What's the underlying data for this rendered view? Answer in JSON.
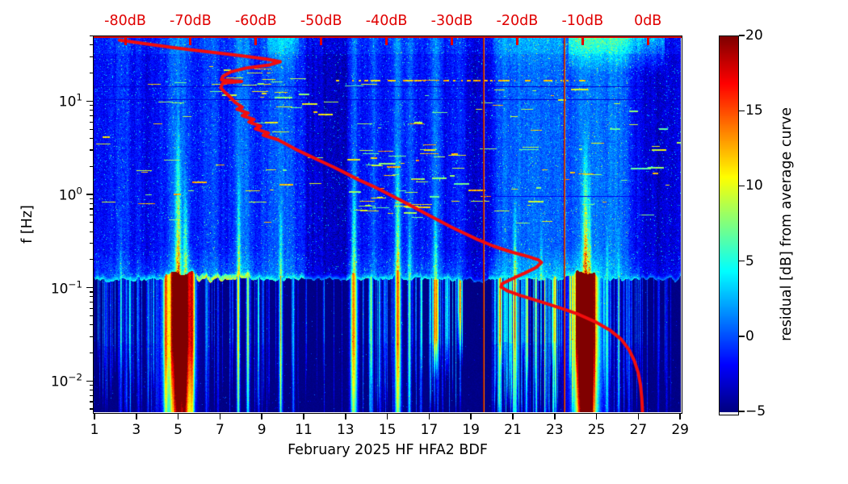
{
  "chart_data": {
    "type": "heatmap",
    "description": "Spectrogram of residual power [dB] relative to average curve, frequency vs day, with overlaid average amplitude spectrum curve read against the red top dB axis",
    "xlabel": "February 2025 HF HFA2  BDF",
    "ylabel": "f [Hz]",
    "x_ticks": [
      1,
      3,
      5,
      7,
      9,
      11,
      13,
      15,
      17,
      19,
      21,
      23,
      25,
      27,
      29
    ],
    "x_range_days": [
      1,
      29
    ],
    "y_tick_exponents": [
      1,
      0,
      -1,
      -2
    ],
    "y_range_hz": [
      0.0047,
      51
    ],
    "grid": false,
    "top_axis": {
      "color": "#e00000",
      "ticks_db": [
        -80,
        -70,
        -60,
        -50,
        -40,
        -30,
        -20,
        -10,
        0
      ],
      "labels": [
        "-80dB",
        "-70dB",
        "-60dB",
        "-50dB",
        "-40dB",
        "-30dB",
        "-20dB",
        "-10dB",
        "0dB"
      ]
    },
    "colorbar": {
      "label": "residual [dB] from average curve",
      "min": -5,
      "max": 20,
      "ticks": [
        20,
        15,
        10,
        5,
        0,
        -5
      ],
      "colormap": "jet"
    },
    "curve_color": "#f20d0d",
    "average_curve_db_hz": [
      [
        -81,
        46
      ],
      [
        -77,
        42
      ],
      [
        -73,
        38.5
      ],
      [
        -69,
        35.5
      ],
      [
        -65,
        33
      ],
      [
        -61.5,
        30.8
      ],
      [
        -58.5,
        28.8
      ],
      [
        -56.4,
        27
      ],
      [
        -58,
        25
      ],
      [
        -61.5,
        23.2
      ],
      [
        -64,
        21
      ],
      [
        -65.2,
        18.8
      ],
      [
        -65.4,
        17.3
      ],
      [
        -62.3,
        16.6
      ],
      [
        -65.2,
        15.9
      ],
      [
        -65.5,
        14.2
      ],
      [
        -64.8,
        12.6
      ],
      [
        -64,
        11.2
      ],
      [
        -63.3,
        9.9
      ],
      [
        -62.2,
        8.8
      ],
      [
        -63,
        8.35
      ],
      [
        -61.3,
        7.6
      ],
      [
        -62.2,
        7.15
      ],
      [
        -60.4,
        6.5
      ],
      [
        -61.2,
        6.1
      ],
      [
        -59.4,
        5.5
      ],
      [
        -60.2,
        5.15
      ],
      [
        -58.2,
        4.65
      ],
      [
        -59,
        4.4
      ],
      [
        -56.8,
        3.95
      ],
      [
        -55.4,
        3.5
      ],
      [
        -53.8,
        3.05
      ],
      [
        -52.2,
        2.7
      ],
      [
        -50.2,
        2.32
      ],
      [
        -48.2,
        2.0
      ],
      [
        -46.2,
        1.7
      ],
      [
        -44.2,
        1.44
      ],
      [
        -42.2,
        1.25
      ],
      [
        -40.2,
        1.06
      ],
      [
        -38.2,
        0.9
      ],
      [
        -36.2,
        0.76
      ],
      [
        -34.2,
        0.64
      ],
      [
        -32.2,
        0.54
      ],
      [
        -30.2,
        0.455
      ],
      [
        -28.2,
        0.39
      ],
      [
        -26.2,
        0.335
      ],
      [
        -23.8,
        0.285
      ],
      [
        -21.2,
        0.248
      ],
      [
        -18.6,
        0.222
      ],
      [
        -16.9,
        0.203
      ],
      [
        -16.4,
        0.19
      ],
      [
        -17.2,
        0.168
      ],
      [
        -18.8,
        0.148
      ],
      [
        -20.8,
        0.128
      ],
      [
        -22.4,
        0.113
      ],
      [
        -22.6,
        0.104
      ],
      [
        -21.6,
        0.094
      ],
      [
        -19.6,
        0.084
      ],
      [
        -16.8,
        0.073
      ],
      [
        -13.6,
        0.062
      ],
      [
        -10.8,
        0.053
      ],
      [
        -8.2,
        0.044
      ],
      [
        -6,
        0.036
      ],
      [
        -4.2,
        0.0285
      ],
      [
        -3,
        0.022
      ],
      [
        -2.2,
        0.0168
      ],
      [
        -1.6,
        0.0125
      ],
      [
        -1.25,
        0.0092
      ],
      [
        -1.05,
        0.0066
      ],
      [
        -0.95,
        0.0048
      ]
    ],
    "spectrogram": {
      "boundary_hz": 0.125,
      "background_upper_db": -1.75,
      "background_lower_db": -4.85,
      "red_vlines_days": [
        19.55,
        23.38
      ],
      "below_events": [
        [
          2.2,
          0.04,
          6,
          1
        ],
        [
          2.65,
          0.03,
          5,
          1
        ],
        [
          3.05,
          0.04,
          5.5,
          1
        ],
        [
          3.5,
          0.03,
          4.5,
          1
        ],
        [
          4.35,
          0.06,
          12,
          1
        ],
        [
          4.8,
          0.5,
          11,
          1
        ],
        [
          4.88,
          0.22,
          21,
          1
        ],
        [
          5.28,
          0.22,
          20,
          1
        ],
        [
          5.62,
          0.08,
          13,
          1
        ],
        [
          6.3,
          0.04,
          6,
          1
        ],
        [
          6.85,
          0.03,
          5,
          1
        ],
        [
          7.82,
          0.05,
          17,
          1
        ],
        [
          8.28,
          0.05,
          14,
          1
        ],
        [
          8.8,
          0.03,
          6,
          1
        ],
        [
          9.85,
          0.06,
          12,
          1
        ],
        [
          10.45,
          0.04,
          8,
          1
        ],
        [
          11.9,
          0.03,
          4,
          0.8
        ],
        [
          13.35,
          0.11,
          19,
          1
        ],
        [
          14.2,
          0.05,
          9,
          1
        ],
        [
          14.6,
          0.04,
          6,
          1
        ],
        [
          15.45,
          0.1,
          19,
          1
        ],
        [
          16.0,
          0.05,
          13,
          1
        ],
        [
          16.55,
          0.04,
          7,
          1
        ],
        [
          17.25,
          0.09,
          15,
          0.6
        ],
        [
          17.8,
          0.06,
          10,
          0.6
        ],
        [
          18.4,
          0.08,
          13,
          0.38
        ],
        [
          20.35,
          0.05,
          10,
          1
        ],
        [
          21.05,
          0.08,
          15,
          1
        ],
        [
          21.6,
          0.05,
          9,
          1
        ],
        [
          22.05,
          0.05,
          9,
          1
        ],
        [
          22.5,
          0.05,
          8,
          1
        ],
        [
          22.95,
          0.05,
          9,
          1
        ],
        [
          24.25,
          0.22,
          21,
          1
        ],
        [
          24.62,
          0.22,
          20.5,
          1
        ],
        [
          24.45,
          0.55,
          13,
          1
        ],
        [
          25.45,
          0.05,
          8,
          1
        ],
        [
          26.0,
          0.05,
          7,
          1
        ],
        [
          26.5,
          0.04,
          6,
          1
        ],
        [
          27.9,
          0.03,
          4,
          0.9
        ],
        [
          28.3,
          0.03,
          3.5,
          0.9
        ]
      ],
      "plumes": [
        [
          4.95,
          0.1,
          14,
          9
        ],
        [
          5.3,
          0.08,
          10,
          3
        ],
        [
          7.85,
          0.05,
          9,
          3
        ],
        [
          9.85,
          0.05,
          7,
          1.5
        ],
        [
          13.35,
          0.07,
          9,
          4
        ],
        [
          15.45,
          0.07,
          11,
          5
        ],
        [
          16.0,
          0.05,
          6,
          1
        ],
        [
          17.25,
          0.06,
          7,
          1.5
        ],
        [
          21.05,
          0.06,
          8,
          2
        ],
        [
          22.3,
          0.05,
          5,
          1
        ],
        [
          24.42,
          0.09,
          15,
          7
        ],
        [
          24.6,
          0.06,
          10,
          3
        ],
        [
          2.2,
          0.04,
          4,
          0.8
        ],
        [
          25.45,
          0.04,
          5,
          1
        ],
        [
          26.0,
          0.04,
          4,
          0.8
        ]
      ],
      "streak_density": [
        [
          1.05,
          4.1,
          0.45,
          6.5
        ],
        [
          4.1,
          5.7,
          0.25,
          5
        ],
        [
          5.7,
          7.6,
          0.3,
          5.5
        ],
        [
          8.4,
          10.3,
          0.35,
          7
        ],
        [
          10.3,
          13.0,
          0.12,
          4.5
        ],
        [
          13.7,
          15.3,
          0.4,
          7
        ],
        [
          16.1,
          18.6,
          0.45,
          8
        ],
        [
          19.95,
          23.3,
          0.7,
          10
        ],
        [
          23.6,
          25.2,
          0.5,
          9
        ],
        [
          25.2,
          27.2,
          0.3,
          6
        ],
        [
          27.3,
          28.95,
          0.2,
          4.5
        ]
      ],
      "cols_above": [
        [
          2.3,
          0.3,
          1.4
        ],
        [
          4.9,
          0.45,
          2.6
        ],
        [
          6.5,
          0.3,
          1.4
        ],
        [
          8.0,
          0.3,
          2.8
        ],
        [
          9.9,
          0.65,
          2.4
        ],
        [
          13.35,
          0.15,
          3.0
        ],
        [
          14.3,
          0.15,
          1.8
        ],
        [
          15.45,
          0.2,
          3.0
        ],
        [
          16.1,
          0.15,
          2.0
        ],
        [
          17.25,
          0.2,
          2.4
        ],
        [
          18.4,
          0.15,
          1.7
        ],
        [
          20.5,
          0.3,
          2.0
        ],
        [
          21.2,
          0.3,
          2.4
        ],
        [
          22.1,
          0.5,
          2.1
        ],
        [
          23.0,
          0.4,
          2.1
        ],
        [
          24.45,
          0.5,
          3.2
        ],
        [
          25.5,
          0.4,
          2.2
        ],
        [
          26.2,
          0.4,
          2.0
        ],
        [
          11.9,
          0.9,
          -1.6
        ],
        [
          19.1,
          0.5,
          -1.3
        ],
        [
          27.9,
          1.0,
          -1.4
        ],
        [
          3.7,
          0.3,
          -0.8
        ],
        [
          12.9,
          0.3,
          -1.0
        ]
      ],
      "top_band": [
        [
          23.6,
          28.2,
          6.0
        ],
        [
          9.2,
          10.7,
          3.2
        ],
        [
          20.0,
          23.3,
          1.5
        ]
      ],
      "fuzz": [
        [
          1,
          5.8,
          2.0
        ],
        [
          5.8,
          8.5,
          2.6
        ],
        [
          8.5,
          11,
          1.6
        ],
        [
          11,
          13,
          0.7
        ],
        [
          13,
          18.5,
          2.2
        ],
        [
          18.5,
          19.8,
          1.0
        ],
        [
          19.8,
          23.4,
          3.0
        ],
        [
          23.4,
          25.2,
          3.2
        ],
        [
          25.2,
          27,
          2.2
        ],
        [
          27,
          29.2,
          1.0
        ]
      ],
      "ridge": [
        [
          1,
          5.8,
          5
        ],
        [
          5.8,
          8.4,
          10.5
        ],
        [
          8.4,
          11,
          6
        ],
        [
          11,
          13,
          2
        ],
        [
          13,
          18.5,
          5
        ],
        [
          18.5,
          19.8,
          1
        ],
        [
          19.8,
          23.4,
          5
        ],
        [
          23.4,
          25.2,
          6
        ],
        [
          25.2,
          27,
          4.5
        ],
        [
          27,
          29.2,
          2
        ]
      ],
      "dark_rows_hz": [
        14.8,
        10.6
      ],
      "dash_row_hz": 17.3
    }
  }
}
